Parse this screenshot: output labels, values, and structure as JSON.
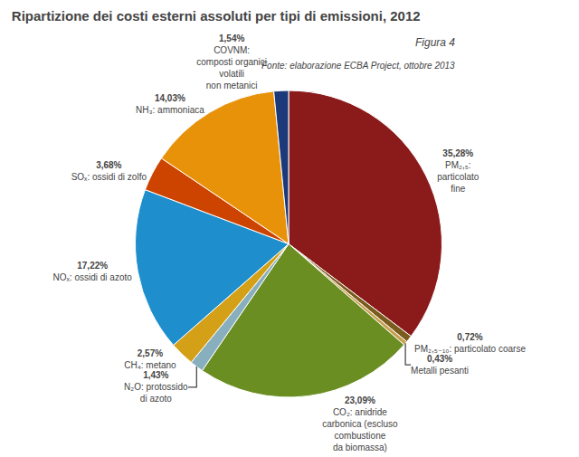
{
  "chart_data": {
    "type": "pie",
    "title": "Ripartizione dei costi esterni assoluti per tipi di emissioni, 2012",
    "subtitle": "Figura 4",
    "source": "Fonte: elaborazione ECBA Project, ottobre 2013",
    "categories": [
      "PM₂,₅:\nparticolato\nfine",
      "PM₂,₅₋₁₀: particolato coarse",
      "Metalli pesanti",
      "CO₂: anidride\ncarbonica (escluso\ncombustione\nda biomassa)",
      "N₂O: protossido\ndi azoto",
      "CH₄: metano",
      "NOₓ: ossidi di azoto",
      "SOₓ: ossidi di zolfo",
      "NH₃: ammoniaca",
      "COVNM:\ncomposti organici\nvolatili\nnon metanici"
    ],
    "values": [
      35.28,
      0.72,
      0.43,
      23.09,
      1.43,
      2.57,
      17.22,
      3.68,
      14.03,
      1.54
    ],
    "value_labels": [
      "35,28%",
      "0,72%",
      "0,43%",
      "23,09%",
      "1,43%",
      "2,57%",
      "17,22%",
      "3,68%",
      "14,03%",
      "1,54%"
    ],
    "data_labels": true,
    "colors": [
      "#8B1A1A",
      "#7A5C1E",
      "#C8A050",
      "#6B8E23",
      "#87AFBE",
      "#D4A017",
      "#1E8FCC",
      "#CC4400",
      "#E8920A",
      "#1C3A7A"
    ]
  }
}
